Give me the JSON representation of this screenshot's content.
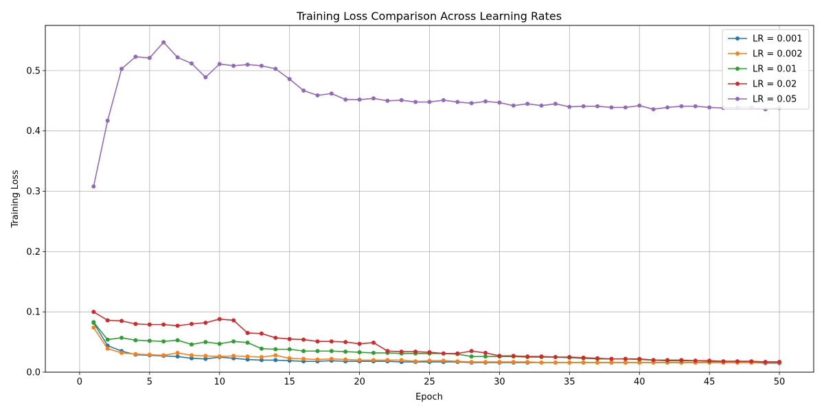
{
  "chart_data": {
    "type": "line",
    "title": "Training Loss Comparison Across Learning Rates",
    "xlabel": "Epoch",
    "ylabel": "Training Loss",
    "xlim": [
      -2.45,
      52.45
    ],
    "ylim": [
      0,
      0.575
    ],
    "xticks": [
      0,
      5,
      10,
      15,
      20,
      25,
      30,
      35,
      40,
      45,
      50
    ],
    "yticks": [
      0.0,
      0.1,
      0.2,
      0.3,
      0.4,
      0.5
    ],
    "ytick_labels": [
      "0.0",
      "0.1",
      "0.2",
      "0.3",
      "0.4",
      "0.5"
    ],
    "grid": true,
    "legend_position": "top-right",
    "x": [
      1,
      2,
      3,
      4,
      5,
      6,
      7,
      8,
      9,
      10,
      11,
      12,
      13,
      14,
      15,
      16,
      17,
      18,
      19,
      20,
      21,
      22,
      23,
      24,
      25,
      26,
      27,
      28,
      29,
      30,
      31,
      32,
      33,
      34,
      35,
      36,
      37,
      38,
      39,
      40,
      41,
      42,
      43,
      44,
      45,
      46,
      47,
      48,
      49,
      50
    ],
    "series": [
      {
        "name": "LR = 0.001",
        "color": "#1f77b4",
        "values": [
          0.082,
          0.044,
          0.035,
          0.029,
          0.028,
          0.027,
          0.026,
          0.023,
          0.022,
          0.025,
          0.023,
          0.021,
          0.02,
          0.02,
          0.019,
          0.018,
          0.018,
          0.019,
          0.018,
          0.018,
          0.018,
          0.018,
          0.017,
          0.017,
          0.017,
          0.017,
          0.017,
          0.016,
          0.016,
          0.016,
          0.016,
          0.016,
          0.016,
          0.016,
          0.016,
          0.016,
          0.016,
          0.016,
          0.016,
          0.016,
          0.016,
          0.016,
          0.016,
          0.016,
          0.016,
          0.016,
          0.016,
          0.016,
          0.015,
          0.015
        ]
      },
      {
        "name": "LR = 0.002",
        "color": "#ff7f0e",
        "values": [
          0.074,
          0.039,
          0.032,
          0.03,
          0.029,
          0.028,
          0.032,
          0.028,
          0.027,
          0.026,
          0.027,
          0.026,
          0.025,
          0.028,
          0.023,
          0.022,
          0.021,
          0.022,
          0.021,
          0.02,
          0.02,
          0.02,
          0.02,
          0.018,
          0.019,
          0.019,
          0.018,
          0.017,
          0.017,
          0.017,
          0.017,
          0.017,
          0.016,
          0.016,
          0.016,
          0.016,
          0.016,
          0.016,
          0.016,
          0.016,
          0.016,
          0.016,
          0.016,
          0.016,
          0.016,
          0.016,
          0.016,
          0.016,
          0.016,
          0.016
        ]
      },
      {
        "name": "LR = 0.01",
        "color": "#2ca02c",
        "values": [
          0.083,
          0.054,
          0.057,
          0.053,
          0.052,
          0.051,
          0.053,
          0.046,
          0.05,
          0.047,
          0.051,
          0.049,
          0.039,
          0.038,
          0.038,
          0.035,
          0.035,
          0.035,
          0.034,
          0.033,
          0.032,
          0.032,
          0.031,
          0.031,
          0.031,
          0.031,
          0.03,
          0.026,
          0.026,
          0.026,
          0.026,
          0.025,
          0.025,
          0.025,
          0.024,
          0.023,
          0.022,
          0.022,
          0.022,
          0.021,
          0.02,
          0.019,
          0.019,
          0.019,
          0.018,
          0.018,
          0.018,
          0.018,
          0.017,
          0.017
        ]
      },
      {
        "name": "LR = 0.02",
        "color": "#d62728",
        "values": [
          0.1,
          0.086,
          0.085,
          0.08,
          0.079,
          0.079,
          0.077,
          0.08,
          0.082,
          0.088,
          0.086,
          0.065,
          0.064,
          0.057,
          0.055,
          0.054,
          0.051,
          0.051,
          0.05,
          0.047,
          0.049,
          0.035,
          0.034,
          0.034,
          0.033,
          0.031,
          0.031,
          0.035,
          0.032,
          0.027,
          0.027,
          0.026,
          0.026,
          0.025,
          0.025,
          0.024,
          0.023,
          0.022,
          0.022,
          0.022,
          0.02,
          0.02,
          0.02,
          0.019,
          0.019,
          0.018,
          0.018,
          0.018,
          0.017,
          0.017
        ]
      },
      {
        "name": "LR = 0.05",
        "color": "#9467bd",
        "values": [
          0.308,
          0.417,
          0.503,
          0.523,
          0.521,
          0.547,
          0.522,
          0.512,
          0.489,
          0.511,
          0.508,
          0.51,
          0.508,
          0.503,
          0.486,
          0.467,
          0.459,
          0.462,
          0.452,
          0.452,
          0.454,
          0.45,
          0.451,
          0.448,
          0.448,
          0.451,
          0.448,
          0.446,
          0.449,
          0.447,
          0.442,
          0.445,
          0.442,
          0.445,
          0.44,
          0.441,
          0.441,
          0.439,
          0.439,
          0.442,
          0.436,
          0.439,
          0.441,
          0.441,
          0.439,
          0.438,
          0.439,
          0.439,
          0.436,
          0.438
        ]
      }
    ]
  }
}
